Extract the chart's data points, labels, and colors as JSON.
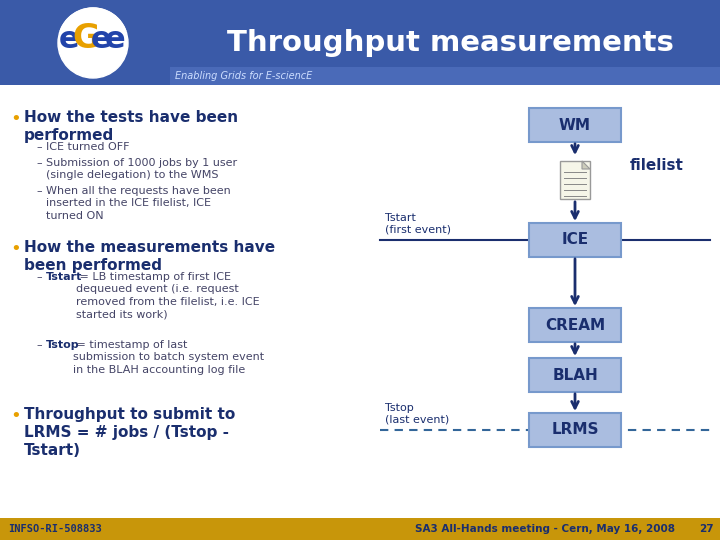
{
  "title": "Throughput measurements",
  "subtitle": "Enabling Grids for E-sciencE",
  "header_bg": "#3a5aa8",
  "header_title_color": "#ffffff",
  "body_bg": "#ffffff",
  "footer_bg": "#c8960a",
  "footer_text": "SA3 All-Hands meeting - Cern, May 16, 2008",
  "footer_page": "27",
  "footer_color": "#1a2e6e",
  "infso_text": "INFSO-RI-508833",
  "bullet_color": "#e8a000",
  "heading_color": "#1a2e6e",
  "body_text_color": "#444466",
  "dark_blue": "#1a2e6e",
  "box_fill": "#aabde0",
  "box_border": "#7799cc",
  "arrow_color": "#1a2e6e",
  "line_color": "#1a2e6e",
  "dashed_color": "#336699",
  "bullet1_heading": "How the tests have been\nperformed",
  "bullet1_item1": "ICE turned OFF",
  "bullet1_item2": "Submission of 1000 jobs by 1 user\n(single delegation) to the WMS",
  "bullet1_item3": "When all the requests have been\ninserted in the ICE filelist, ICE\nturned ON",
  "bullet2_heading": "How the measurements have\nbeen performed",
  "bullet2_item1_bold": "Tstart",
  "bullet2_item1_rest": " = LB timestamp of first ICE\ndequeued event (i.e. request\nremoved from the filelist, i.e. ICE\nstarted its work)",
  "bullet2_item2_bold": "Tstop",
  "bullet2_item2_rest": " = timestamp of last\nsubmission to batch system event\nin the BLAH accounting log file",
  "bullet3_heading": "Throughput to submit to\nLRMS = # jobs / (Tstop -\nTstart)",
  "filelist_label": "filelist",
  "tstart_label": "Tstart\n(first event)",
  "tstop_label": "Tstop\n(last event)"
}
